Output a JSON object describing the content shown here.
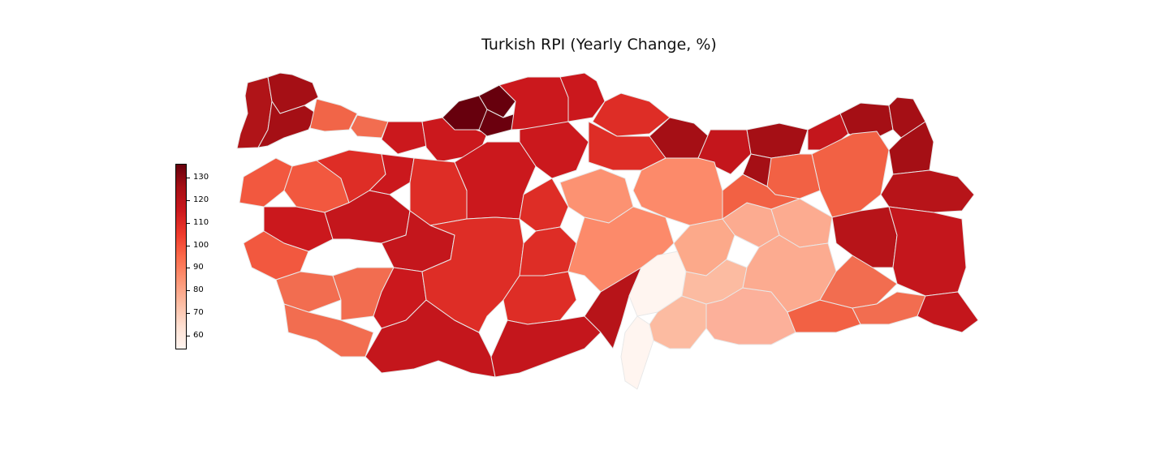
{
  "title": "Turkish RPI (Yearly Change, %)",
  "colorbar": {
    "cmap": "Reds",
    "range": [
      54,
      136
    ],
    "ticks": [
      "130",
      "120",
      "110",
      "100",
      "90",
      "80",
      "70",
      "60"
    ]
  },
  "colors": {
    "darkest": "#67000d",
    "dark": "#a50f15",
    "red": "#cb181d",
    "mid_red": "#de2d26",
    "orange_red": "#ef3b2c",
    "salmon": "#fb6a4a",
    "light_salmon": "#fc9272",
    "pale": "#fcbba1",
    "very_pale": "#fee0d2",
    "near_white": "#fff5f0"
  }
}
